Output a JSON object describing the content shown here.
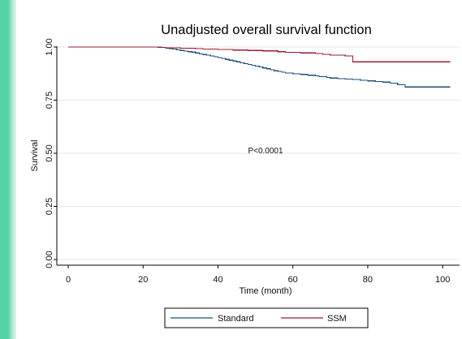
{
  "chart_data": {
    "type": "line",
    "title": "Unadjusted overall survival function",
    "xlabel": "Time (month)",
    "ylabel": "Survival",
    "xlim": [
      0,
      103
    ],
    "ylim": [
      0,
      1
    ],
    "xticks": [
      0,
      20,
      40,
      60,
      80,
      100
    ],
    "yticks": [
      "0.00",
      "0.25",
      "0.50",
      "0.75",
      "1.00"
    ],
    "ytick_values": [
      0,
      0.25,
      0.5,
      0.75,
      1
    ],
    "grid": "horizontal",
    "legend_position": "bottom",
    "annotation": "P<0.0001",
    "series": [
      {
        "name": "Standard",
        "color": "#1f4e79",
        "x": [
          0,
          25,
          26,
          27,
          28,
          29,
          30,
          31,
          32,
          33,
          34,
          35,
          36,
          37,
          38,
          39,
          40,
          41,
          42,
          43,
          44,
          45,
          46,
          47,
          48,
          49,
          50,
          51,
          52,
          53,
          54,
          55,
          56,
          57,
          58,
          60,
          62,
          64,
          66,
          67,
          69,
          70,
          72,
          74,
          76,
          78,
          80,
          82,
          84,
          86,
          88,
          90,
          102
        ],
        "y": [
          1.0,
          0.998,
          0.995,
          0.993,
          0.99,
          0.987,
          0.984,
          0.981,
          0.978,
          0.976,
          0.972,
          0.968,
          0.965,
          0.962,
          0.958,
          0.954,
          0.95,
          0.946,
          0.942,
          0.938,
          0.934,
          0.93,
          0.926,
          0.922,
          0.918,
          0.914,
          0.91,
          0.906,
          0.902,
          0.898,
          0.893,
          0.888,
          0.885,
          0.882,
          0.878,
          0.874,
          0.871,
          0.867,
          0.864,
          0.861,
          0.857,
          0.854,
          0.851,
          0.849,
          0.847,
          0.844,
          0.841,
          0.838,
          0.835,
          0.83,
          0.822,
          0.812,
          0.812
        ]
      },
      {
        "name": "SSM",
        "color": "#9b1b30",
        "x": [
          0,
          24,
          26,
          30,
          34,
          36,
          40,
          44,
          48,
          52,
          56,
          58,
          62,
          66,
          68,
          70,
          74,
          76,
          102
        ],
        "y": [
          1.0,
          0.998,
          0.996,
          0.994,
          0.992,
          0.99,
          0.988,
          0.986,
          0.984,
          0.982,
          0.978,
          0.975,
          0.972,
          0.97,
          0.966,
          0.962,
          0.958,
          0.93,
          0.93
        ]
      }
    ]
  }
}
